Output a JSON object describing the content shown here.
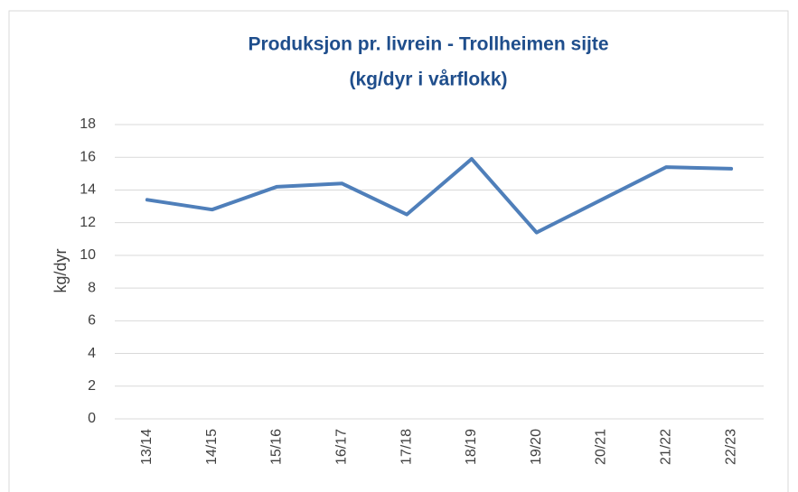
{
  "chart_data": {
    "type": "line",
    "title": [
      "Produksjon pr. livrein - Trollheimen sijte",
      "(kg/dyr i vårflokk)"
    ],
    "y_label": "kg/dyr",
    "categories": [
      "13/14",
      "14/15",
      "15/16",
      "16/17",
      "17/18",
      "18/19",
      "19/20",
      "20/21",
      "21/22",
      "22/23"
    ],
    "series": [
      {
        "name": "kg/dyr",
        "color": "#4f7fba",
        "values": [
          13.4,
          12.8,
          14.2,
          14.4,
          12.5,
          15.9,
          11.4,
          13.4,
          15.4,
          15.3
        ]
      }
    ],
    "ylim": [
      0,
      18
    ],
    "yticks": [
      0,
      2,
      4,
      6,
      8,
      10,
      12,
      14,
      16,
      18
    ],
    "grid": true
  }
}
